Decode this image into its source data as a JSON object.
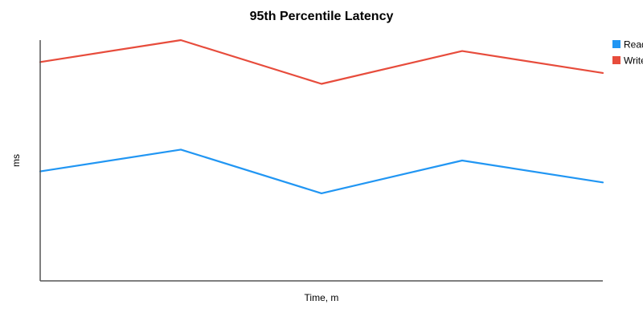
{
  "chart_data": {
    "type": "line",
    "title": "95th Percentile Latency",
    "xlabel": "Time, m",
    "ylabel": "ms",
    "x": [
      0,
      1,
      2,
      3,
      4
    ],
    "ylim": [
      0,
      11
    ],
    "grid": false,
    "legend_position": "top-right",
    "series": [
      {
        "name": "Read",
        "color": "#2196f3",
        "values": [
          5.0,
          6.0,
          4.0,
          5.5,
          4.5
        ]
      },
      {
        "name": "Write",
        "color": "#e74c3c",
        "values": [
          10.0,
          11.0,
          9.0,
          10.5,
          9.5
        ]
      }
    ]
  }
}
